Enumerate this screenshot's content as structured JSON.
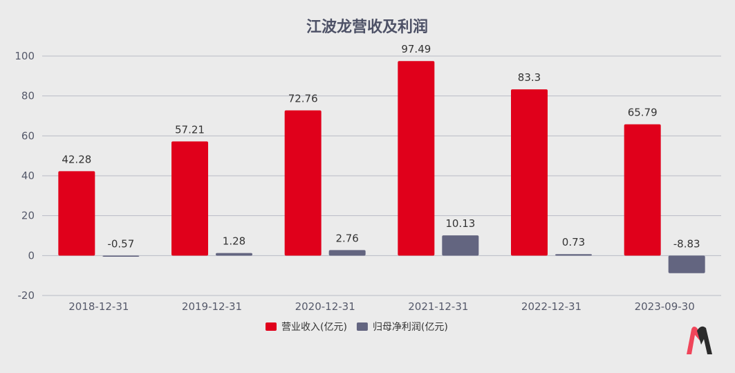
{
  "chart_data": {
    "type": "bar",
    "title": "江波龙营收及利润",
    "categories": [
      "2018-12-31",
      "2019-12-31",
      "2020-12-31",
      "2021-12-31",
      "2022-12-31",
      "2023-09-30"
    ],
    "series": [
      {
        "name": "营业收入(亿元)",
        "color": "#e0001b",
        "values": [
          42.28,
          57.21,
          72.76,
          97.49,
          83.3,
          65.79
        ]
      },
      {
        "name": "归母净利润(亿元)",
        "color": "#636580",
        "values": [
          -0.57,
          1.28,
          2.76,
          10.13,
          0.73,
          -8.83
        ]
      }
    ],
    "ylim": [
      -20,
      100
    ],
    "yticks": [
      -20,
      0,
      20,
      40,
      60,
      80,
      100
    ],
    "grid": true,
    "legend": "bottom"
  }
}
